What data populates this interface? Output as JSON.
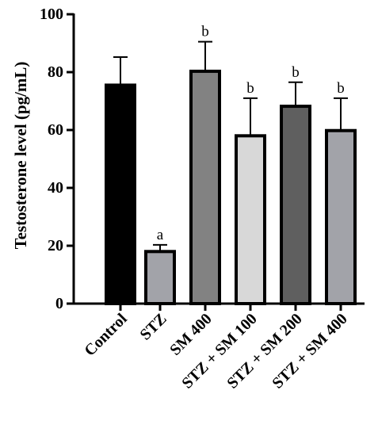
{
  "chart_data": {
    "type": "bar",
    "title": "",
    "xlabel": "",
    "ylabel": "Testosterone level (pg/mL)",
    "ylim": [
      0,
      100
    ],
    "yticks": [
      0,
      20,
      40,
      60,
      80,
      100
    ],
    "grid": false,
    "categories": [
      "Control",
      "STZ",
      "SM 400",
      "STZ + SM 100",
      "STZ + SM 200",
      "STZ + SM 400"
    ],
    "values": [
      75.5,
      18,
      80.3,
      58,
      68.2,
      59.8
    ],
    "errors": [
      9.7,
      2.3,
      10.2,
      13,
      8.3,
      11.2
    ],
    "significance": [
      "",
      "a",
      "b",
      "b",
      "b",
      "b"
    ],
    "colors": [
      "#000000",
      "#a2a3a9",
      "#828282",
      "#d8d8d8",
      "#5f5f5f",
      "#a2a3a9"
    ]
  }
}
